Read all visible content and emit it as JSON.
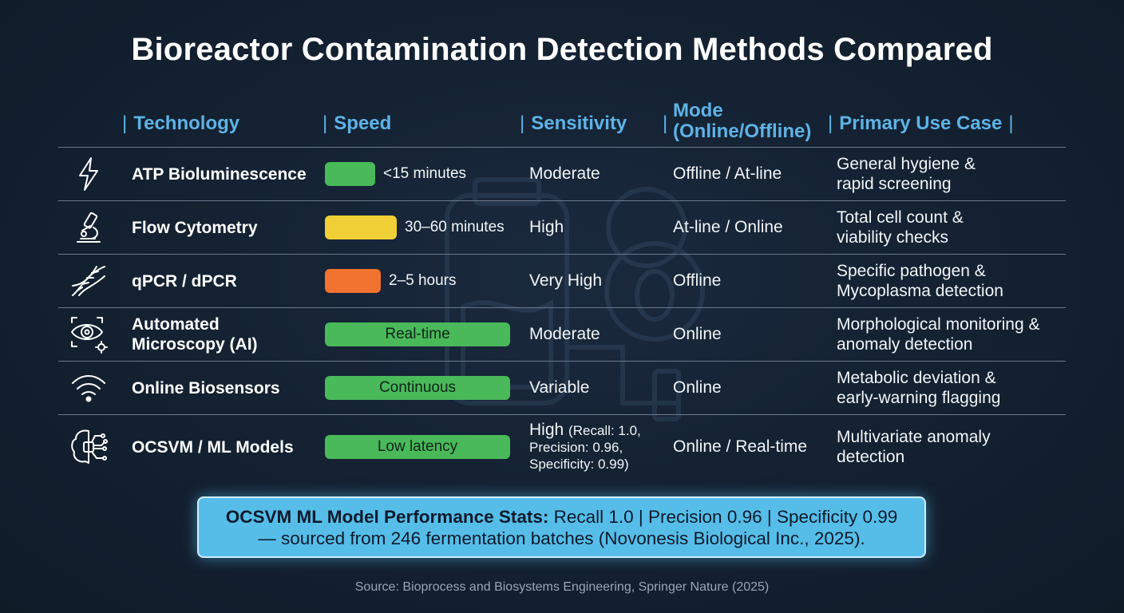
{
  "title": "Bioreactor Contamination Detection Methods Compared",
  "headers": {
    "technology": "Technology",
    "speed": "Speed",
    "sensitivity": "Sensitivity",
    "mode": "Mode (Online/Offline)",
    "use_case": "Primary Use Case",
    "separator": "|"
  },
  "colors": {
    "fast": "#49b95a",
    "medium": "#f0cf36",
    "slow": "#f2732f",
    "accent": "#5eb3e6",
    "callout_bg": "#56bde9"
  },
  "chart_data": {
    "type": "table",
    "columns": [
      "Technology",
      "Speed",
      "Sensitivity",
      "Mode (Online/Offline)",
      "Primary Use Case"
    ],
    "rows": [
      {
        "icon": "lightning-icon",
        "technology": "ATP Bioluminescence",
        "speed": "<15 minutes",
        "speed_color": "#49b95a",
        "speed_bar_fraction": 0.27,
        "speed_label_inside": false,
        "sensitivity": "Moderate",
        "mode": "Offline / At-line",
        "use_case_line1": "General hygiene &",
        "use_case_line2": "rapid screening"
      },
      {
        "icon": "microscope-icon",
        "technology": "Flow Cytometry",
        "speed": "30–60 minutes",
        "speed_color": "#f0cf36",
        "speed_bar_fraction": 0.39,
        "speed_label_inside": false,
        "sensitivity": "High",
        "mode": "At-line / Online",
        "use_case_line1": "Total cell count &",
        "use_case_line2": "viability checks"
      },
      {
        "icon": "dna-icon",
        "technology": "qPCR / dPCR",
        "speed": "2–5 hours",
        "speed_color": "#f2732f",
        "speed_bar_fraction": 0.3,
        "speed_label_inside": false,
        "sensitivity": "Very High",
        "mode": "Offline",
        "use_case_line1": "Specific pathogen &",
        "use_case_line2": "Mycoplasma detection"
      },
      {
        "icon": "eye-gear-icon",
        "technology": "Automated Microscopy (AI)",
        "speed": "Real-time",
        "speed_color": "#49b95a",
        "speed_bar_fraction": 1.0,
        "speed_label_inside": true,
        "sensitivity": "Moderate",
        "mode": "Online",
        "use_case_line1": "Morphological monitoring &",
        "use_case_line2": "anomaly detection"
      },
      {
        "icon": "wifi-icon",
        "technology": "Online Biosensors",
        "speed": "Continuous",
        "speed_color": "#49b95a",
        "speed_bar_fraction": 1.0,
        "speed_label_inside": true,
        "sensitivity": "Variable",
        "mode": "Online",
        "use_case_line1": "Metabolic deviation &",
        "use_case_line2": "early-warning flagging"
      },
      {
        "icon": "brain-circuit-icon",
        "technology": "OCSVM / ML Models",
        "speed": "Low latency",
        "speed_color": "#49b95a",
        "speed_bar_fraction": 1.0,
        "speed_label_inside": true,
        "sensitivity": "High",
        "sensitivity_detail_1": "(Recall: 1.0,",
        "sensitivity_detail_2": "Precision: 0.96,",
        "sensitivity_detail_3": "Specificity: 0.99)",
        "mode": "Online / Real-time",
        "use_case_line1": "Multivariate anomaly",
        "use_case_line2": "detection"
      }
    ]
  },
  "callout": {
    "bold": "OCSVM ML Model Performance Stats:",
    "line1_rest": " Recall 1.0 | Precision 0.96 | Specificity 0.99",
    "line2": "— sourced from 246 fermentation batches (Novonesis Biological Inc., 2025)."
  },
  "source": "Source: Bioprocess and Biosystems Engineering, Springer Nature (2025)"
}
